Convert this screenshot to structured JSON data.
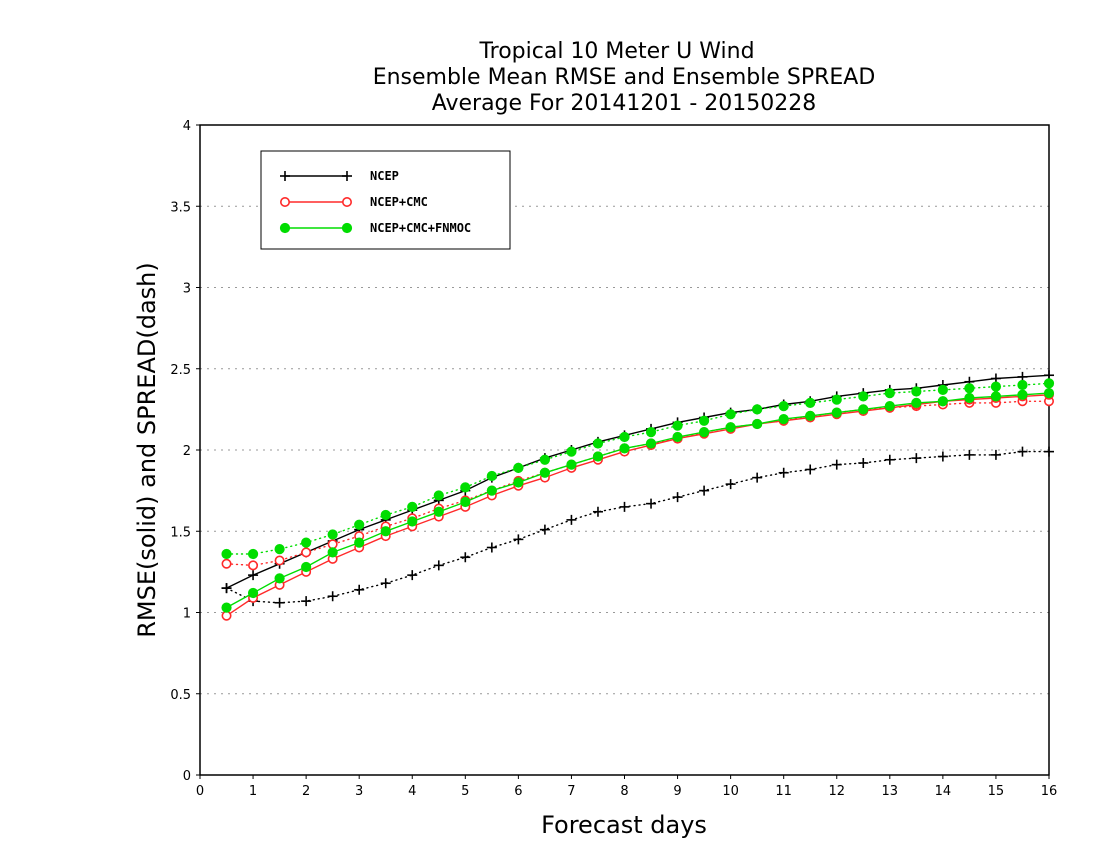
{
  "chart_data": {
    "type": "line",
    "title": [
      "Tropical 10 Meter U Wind",
      "Ensemble Mean RMSE and Ensemble SPREAD",
      "Average For 20141201 - 20150228"
    ],
    "xlabel": "Forecast days",
    "ylabel": "RMSE(solid) and SPREAD(dash)",
    "xlim": [
      0,
      16
    ],
    "ylim": [
      0,
      4
    ],
    "xticks": [
      "0",
      "1",
      "2",
      "3",
      "4",
      "5",
      "6",
      "7",
      "8",
      "9",
      "10",
      "11",
      "12",
      "13",
      "14",
      "15",
      "16"
    ],
    "yticks": [
      "0",
      "0.5",
      "1",
      "1.5",
      "2",
      "2.5",
      "3",
      "3.5",
      "4"
    ],
    "grid": "horizontal dotted",
    "legend_position": "top-left",
    "x": [
      0.5,
      1,
      1.5,
      2,
      2.5,
      3,
      3.5,
      4,
      4.5,
      5,
      5.5,
      6,
      6.5,
      7,
      7.5,
      8,
      8.5,
      9,
      9.5,
      10,
      10.5,
      11,
      11.5,
      12,
      12.5,
      13,
      13.5,
      14,
      14.5,
      15,
      15.5,
      16
    ],
    "series": [
      {
        "name": "NCEP",
        "color": "#000000",
        "marker": "plus",
        "rmse": [
          1.15,
          1.23,
          1.3,
          1.37,
          1.44,
          1.51,
          1.57,
          1.63,
          1.69,
          1.75,
          1.83,
          1.89,
          1.95,
          2.0,
          2.05,
          2.09,
          2.13,
          2.17,
          2.2,
          2.23,
          2.25,
          2.28,
          2.3,
          2.33,
          2.35,
          2.37,
          2.38,
          2.4,
          2.42,
          2.44,
          2.45,
          2.46
        ],
        "spread": [
          1.15,
          1.07,
          1.06,
          1.07,
          1.1,
          1.14,
          1.18,
          1.23,
          1.29,
          1.34,
          1.4,
          1.45,
          1.51,
          1.57,
          1.62,
          1.65,
          1.67,
          1.71,
          1.75,
          1.79,
          1.83,
          1.86,
          1.88,
          1.91,
          1.92,
          1.94,
          1.95,
          1.96,
          1.97,
          1.97,
          1.99,
          1.99
        ]
      },
      {
        "name": "NCEP+CMC",
        "color": "#ff2a2a",
        "marker": "open-circle",
        "rmse": [
          0.98,
          1.09,
          1.17,
          1.25,
          1.33,
          1.4,
          1.47,
          1.53,
          1.59,
          1.65,
          1.72,
          1.78,
          1.83,
          1.89,
          1.94,
          1.99,
          2.03,
          2.07,
          2.1,
          2.13,
          2.16,
          2.18,
          2.2,
          2.22,
          2.24,
          2.26,
          2.28,
          2.3,
          2.31,
          2.32,
          2.33,
          2.34
        ],
        "spread": [
          1.3,
          1.29,
          1.32,
          1.37,
          1.42,
          1.47,
          1.53,
          1.58,
          1.64,
          1.69,
          1.75,
          1.81,
          1.86,
          1.91,
          1.96,
          2.01,
          2.04,
          2.07,
          2.11,
          2.14,
          2.16,
          2.18,
          2.21,
          2.23,
          2.25,
          2.26,
          2.27,
          2.28,
          2.29,
          2.29,
          2.3,
          2.3
        ]
      },
      {
        "name": "NCEP+CMC+FNMOC",
        "color": "#00dd00",
        "marker": "filled-circle",
        "rmse": [
          1.03,
          1.12,
          1.21,
          1.28,
          1.37,
          1.43,
          1.5,
          1.56,
          1.62,
          1.68,
          1.75,
          1.8,
          1.86,
          1.91,
          1.96,
          2.01,
          2.04,
          2.08,
          2.11,
          2.14,
          2.16,
          2.19,
          2.21,
          2.23,
          2.25,
          2.27,
          2.29,
          2.3,
          2.32,
          2.33,
          2.34,
          2.35
        ],
        "spread": [
          1.36,
          1.36,
          1.39,
          1.43,
          1.48,
          1.54,
          1.6,
          1.65,
          1.72,
          1.77,
          1.84,
          1.89,
          1.94,
          1.99,
          2.04,
          2.08,
          2.11,
          2.15,
          2.18,
          2.22,
          2.25,
          2.27,
          2.29,
          2.31,
          2.33,
          2.35,
          2.36,
          2.37,
          2.38,
          2.39,
          2.4,
          2.41
        ]
      }
    ]
  }
}
